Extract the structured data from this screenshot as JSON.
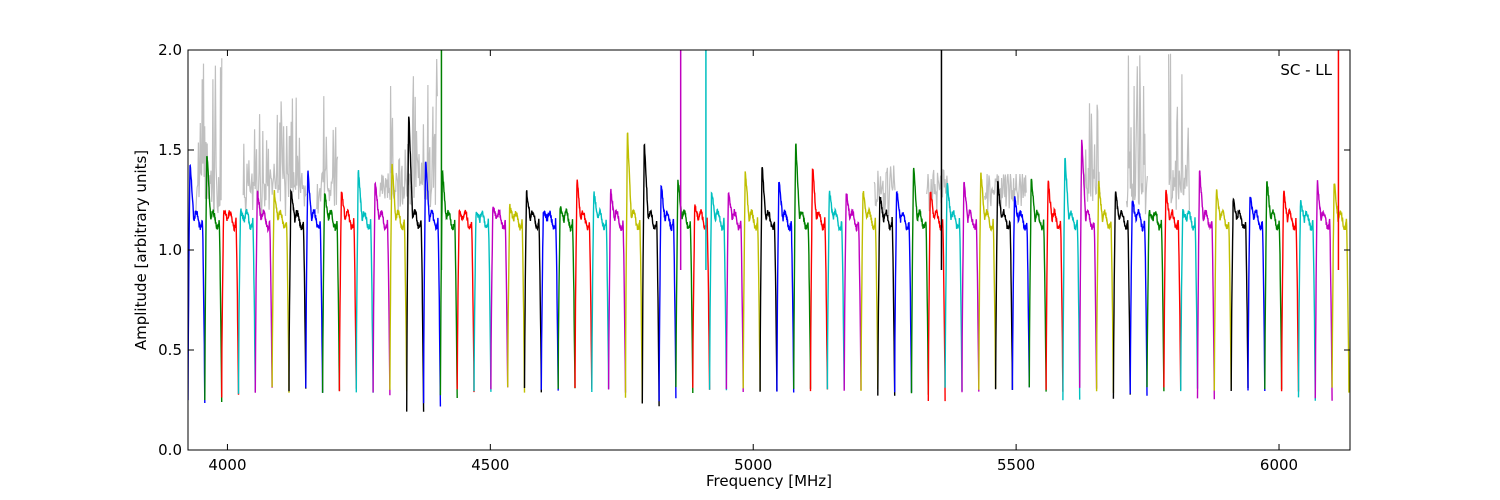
{
  "chart_data": {
    "type": "line",
    "title": "",
    "xlabel": "Frequency [MHz]",
    "ylabel": "Amplitude [arbitrary units]",
    "xlim": [
      3925,
      6135
    ],
    "ylim": [
      0.0,
      2.0
    ],
    "xticks": [
      4000,
      4500,
      5000,
      5500,
      6000
    ],
    "xtick_labels": [
      "4000",
      "4500",
      "5000",
      "5500",
      "6000"
    ],
    "yticks": [
      0.0,
      0.5,
      1.0,
      1.5,
      2.0
    ],
    "ytick_labels": [
      "0.0",
      "0.5",
      "1.0",
      "1.5",
      "2.0"
    ],
    "annotation": "SC - LL",
    "grid": false,
    "legend": "none",
    "channel_width_mhz": 32,
    "channel_color_cycle": [
      "#0000ff",
      "#008000",
      "#ff0000",
      "#00bfbf",
      "#bf00bf",
      "#bfbf00",
      "#000000"
    ],
    "raw_series_color": "#bfbfbf",
    "raw_series_bursts": [
      {
        "x": [
          3940,
          3990
        ],
        "peak": 1.98
      },
      {
        "x": [
          4030,
          4150
        ],
        "peak": 1.8
      },
      {
        "x": [
          4170,
          4210
        ],
        "peak": 1.85
      },
      {
        "x": [
          4290,
          4400
        ],
        "peak": 2.0
      },
      {
        "x": [
          5230,
          5270
        ],
        "peak": 1.45
      },
      {
        "x": [
          5330,
          5370
        ],
        "peak": 1.4
      },
      {
        "x": [
          5440,
          5520
        ],
        "peak": 1.38
      },
      {
        "x": [
          5630,
          5660
        ],
        "peak": 1.78
      },
      {
        "x": [
          5710,
          5750
        ],
        "peak": 2.0
      },
      {
        "x": [
          5790,
          5830
        ],
        "peak": 2.0
      }
    ],
    "spikes": [
      {
        "x": 4407,
        "top": 2.0,
        "color": "#008000"
      },
      {
        "x": 4862,
        "top": 2.0,
        "color": "#bf00bf"
      },
      {
        "x": 4910,
        "top": 2.0,
        "color": "#00bfbf"
      },
      {
        "x": 5358,
        "top": 2.0,
        "color": "#000000"
      },
      {
        "x": 6113,
        "top": 2.0,
        "color": "#ff0000"
      }
    ],
    "channel_peaks": [
      1.45,
      1.5,
      1.2,
      1.2,
      1.3,
      1.3,
      1.3,
      1.4,
      1.3,
      1.3,
      1.4,
      1.35,
      1.45,
      1.7,
      1.45,
      1.4,
      1.2,
      1.2,
      1.22,
      1.22,
      1.3,
      1.2,
      1.22,
      1.35,
      1.3,
      1.3,
      1.6,
      1.55,
      1.33,
      1.36,
      1.22,
      1.3,
      1.3,
      1.4,
      1.42,
      1.35,
      1.55,
      1.43,
      1.3,
      1.3,
      1.3,
      1.28,
      1.3,
      1.42,
      1.3,
      1.35,
      1.35,
      1.4,
      1.35,
      1.26,
      1.36,
      1.35,
      1.48,
      1.57,
      1.35,
      1.3,
      1.25,
      1.2,
      1.3,
      1.2,
      1.4,
      1.3,
      1.25,
      1.28,
      1.36,
      1.3,
      1.25,
      1.35,
      1.35
    ],
    "channel_minima": [
      0.25,
      0.25,
      0.27,
      0.28,
      0.3,
      0.3,
      0.3,
      0.3,
      0.3,
      0.3,
      0.3,
      0.28,
      0.3,
      0.2,
      0.22,
      0.26,
      0.3,
      0.3,
      0.3,
      0.3,
      0.3,
      0.3,
      0.3,
      0.3,
      0.3,
      0.3,
      0.25,
      0.23,
      0.25,
      0.3,
      0.3,
      0.3,
      0.3,
      0.3,
      0.3,
      0.3,
      0.3,
      0.3,
      0.3,
      0.3,
      0.3,
      0.27,
      0.3,
      0.27,
      0.25,
      0.3,
      0.3,
      0.3,
      0.3,
      0.3,
      0.3,
      0.3,
      0.25,
      0.3,
      0.3,
      0.27,
      0.27,
      0.3,
      0.3,
      0.3,
      0.25,
      0.3,
      0.3,
      0.3,
      0.3,
      0.3,
      0.25,
      0.25,
      0.3
    ]
  }
}
